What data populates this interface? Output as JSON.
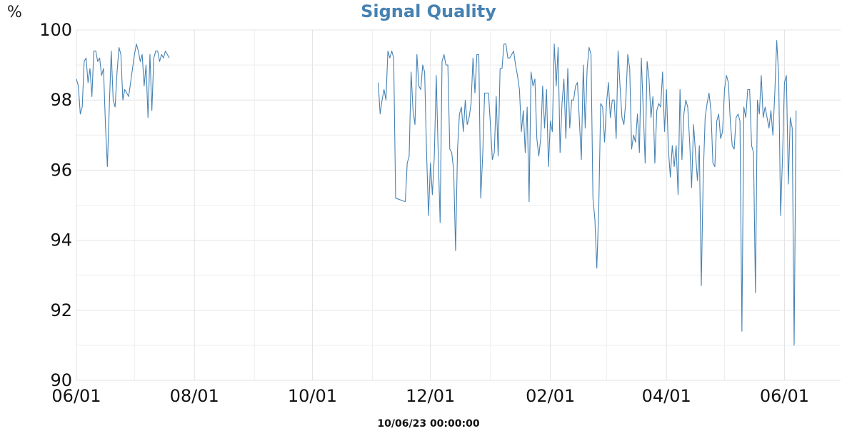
{
  "chart_data": {
    "type": "line",
    "title": "Signal Quality",
    "ylabel": "%",
    "xlabel": "10/06/23 00:00:00",
    "ylim": [
      90,
      100
    ],
    "xlim": [
      "2023-06-01",
      "2024-06-30"
    ],
    "y_ticks": [
      90,
      92,
      94,
      96,
      98,
      100
    ],
    "x_ticks": [
      {
        "date": "2023-06-01",
        "label": "06/01"
      },
      {
        "date": "2023-08-01",
        "label": "08/01"
      },
      {
        "date": "2023-10-01",
        "label": "10/01"
      },
      {
        "date": "2023-12-01",
        "label": "12/01"
      },
      {
        "date": "2024-02-01",
        "label": "02/01"
      },
      {
        "date": "2024-04-01",
        "label": "04/01"
      },
      {
        "date": "2024-06-01",
        "label": "06/01"
      }
    ],
    "grid": true,
    "line_color": "#4682b4",
    "series": [
      {
        "x": [
          "2023-06-01",
          "2023-06-02",
          "2023-06-03",
          "2023-06-04",
          "2023-06-05",
          "2023-06-06",
          "2023-06-07",
          "2023-06-08",
          "2023-06-09",
          "2023-06-10",
          "2023-06-11",
          "2023-06-12",
          "2023-06-13",
          "2023-06-14",
          "2023-06-15",
          "2023-06-16",
          "2023-06-17",
          "2023-06-18",
          "2023-06-19",
          "2023-06-20",
          "2023-06-21",
          "2023-06-22",
          "2023-06-23",
          "2023-06-24",
          "2023-06-25",
          "2023-06-26",
          "2023-06-27",
          "2023-06-28",
          "2023-06-29",
          "2023-06-30",
          "2023-07-01",
          "2023-07-02",
          "2023-07-03",
          "2023-07-04",
          "2023-07-05",
          "2023-07-06",
          "2023-07-07",
          "2023-07-08",
          "2023-07-09",
          "2023-07-10",
          "2023-07-11",
          "2023-07-12",
          "2023-07-13",
          "2023-07-14",
          "2023-07-15",
          "2023-07-16",
          "2023-07-17",
          "2023-07-18",
          "2023-07-19"
        ],
        "y": [
          98.6,
          98.4,
          97.6,
          97.8,
          99.1,
          99.2,
          98.5,
          98.9,
          98.1,
          99.4,
          99.4,
          99.1,
          99.2,
          98.7,
          98.9,
          97.3,
          96.1,
          97.8,
          99.4,
          98.0,
          97.8,
          98.8,
          99.5,
          99.3,
          98.0,
          98.3,
          98.2,
          98.1,
          98.5,
          98.9,
          99.3,
          99.6,
          99.4,
          99.1,
          99.3,
          98.4,
          99.0,
          97.5,
          99.3,
          97.7,
          99.2,
          99.4,
          99.4,
          99.1,
          99.3,
          99.2,
          99.4,
          99.3,
          99.2
        ]
      },
      {
        "x": [
          "2023-11-04",
          "2023-11-05",
          "2023-11-06",
          "2023-11-07",
          "2023-11-08",
          "2023-11-09",
          "2023-11-10",
          "2023-11-11",
          "2023-11-12",
          "2023-11-13",
          "2023-11-18",
          "2023-11-19",
          "2023-11-20",
          "2023-11-21",
          "2023-11-22",
          "2023-11-23",
          "2023-11-24",
          "2023-11-25",
          "2023-11-26",
          "2023-11-27",
          "2023-11-28",
          "2023-11-29",
          "2023-11-30",
          "2023-12-01",
          "2023-12-02",
          "2023-12-03",
          "2023-12-04",
          "2023-12-05",
          "2023-12-06",
          "2023-12-07",
          "2023-12-08",
          "2023-12-09",
          "2023-12-10",
          "2023-12-11",
          "2023-12-12",
          "2023-12-13",
          "2023-12-14",
          "2023-12-15",
          "2023-12-16",
          "2023-12-17",
          "2023-12-18",
          "2023-12-19",
          "2023-12-20",
          "2023-12-21",
          "2023-12-22",
          "2023-12-23",
          "2023-12-24",
          "2023-12-25",
          "2023-12-26",
          "2023-12-27",
          "2023-12-28",
          "2023-12-29",
          "2023-12-30",
          "2023-12-31",
          "2024-01-01",
          "2024-01-02",
          "2024-01-03",
          "2024-01-04",
          "2024-01-05",
          "2024-01-06",
          "2024-01-07",
          "2024-01-08",
          "2024-01-09",
          "2024-01-10",
          "2024-01-11",
          "2024-01-12",
          "2024-01-13",
          "2024-01-14",
          "2024-01-15",
          "2024-01-16",
          "2024-01-17",
          "2024-01-18",
          "2024-01-19",
          "2024-01-20",
          "2024-01-21",
          "2024-01-22",
          "2024-01-23",
          "2024-01-24",
          "2024-01-25",
          "2024-01-26",
          "2024-01-27",
          "2024-01-28",
          "2024-01-29",
          "2024-01-30",
          "2024-01-31",
          "2024-02-01",
          "2024-02-02",
          "2024-02-03",
          "2024-02-04",
          "2024-02-05",
          "2024-02-06",
          "2024-02-07",
          "2024-02-08",
          "2024-02-09",
          "2024-02-10",
          "2024-02-11",
          "2024-02-12",
          "2024-02-13",
          "2024-02-14",
          "2024-02-15",
          "2024-02-16",
          "2024-02-17",
          "2024-02-18",
          "2024-02-19",
          "2024-02-20",
          "2024-02-21",
          "2024-02-22",
          "2024-02-23",
          "2024-02-24",
          "2024-02-25",
          "2024-02-26",
          "2024-02-27",
          "2024-02-28",
          "2024-02-29",
          "2024-03-01",
          "2024-03-02",
          "2024-03-03",
          "2024-03-04",
          "2024-03-05",
          "2024-03-06",
          "2024-03-07",
          "2024-03-08",
          "2024-03-09",
          "2024-03-10",
          "2024-03-11",
          "2024-03-12",
          "2024-03-13",
          "2024-03-14",
          "2024-03-15",
          "2024-03-16",
          "2024-03-17",
          "2024-03-18",
          "2024-03-19",
          "2024-03-20",
          "2024-03-21",
          "2024-03-22",
          "2024-03-23",
          "2024-03-24",
          "2024-03-25",
          "2024-03-26",
          "2024-03-27",
          "2024-03-28",
          "2024-03-29",
          "2024-03-30",
          "2024-03-31",
          "2024-04-01",
          "2024-04-02",
          "2024-04-03",
          "2024-04-04",
          "2024-04-05",
          "2024-04-06",
          "2024-04-07",
          "2024-04-08",
          "2024-04-09",
          "2024-04-10",
          "2024-04-11",
          "2024-04-12",
          "2024-04-13",
          "2024-04-14",
          "2024-04-15",
          "2024-04-16",
          "2024-04-17",
          "2024-04-18",
          "2024-04-19",
          "2024-04-20",
          "2024-04-21",
          "2024-04-22",
          "2024-04-23",
          "2024-04-24",
          "2024-04-25",
          "2024-04-26",
          "2024-04-27",
          "2024-04-28",
          "2024-04-29",
          "2024-04-30",
          "2024-05-01",
          "2024-05-02",
          "2024-05-03",
          "2024-05-04",
          "2024-05-05",
          "2024-05-06",
          "2024-05-07",
          "2024-05-08",
          "2024-05-09",
          "2024-05-10",
          "2024-05-11",
          "2024-05-12",
          "2024-05-13",
          "2024-05-14",
          "2024-05-15",
          "2024-05-16",
          "2024-05-17",
          "2024-05-18",
          "2024-05-19",
          "2024-05-20",
          "2024-05-21",
          "2024-05-22",
          "2024-05-23",
          "2024-05-24",
          "2024-05-25",
          "2024-05-26",
          "2024-05-27",
          "2024-05-28",
          "2024-05-29",
          "2024-05-30",
          "2024-05-31",
          "2024-06-01",
          "2024-06-02",
          "2024-06-03",
          "2024-06-04",
          "2024-06-05",
          "2024-06-06",
          "2024-06-07"
        ],
        "y": [
          98.5,
          97.6,
          98.0,
          98.3,
          98.0,
          99.4,
          99.2,
          99.4,
          99.2,
          95.2,
          95.1,
          96.2,
          96.4,
          98.8,
          97.7,
          97.3,
          99.3,
          98.4,
          98.3,
          99.0,
          98.8,
          96.5,
          94.7,
          96.2,
          95.3,
          96.4,
          98.7,
          96.5,
          94.5,
          99.1,
          99.3,
          99.0,
          99.0,
          96.6,
          96.5,
          96.0,
          93.7,
          96.6,
          97.6,
          97.8,
          97.1,
          98.0,
          97.3,
          97.5,
          97.9,
          99.2,
          98.2,
          99.3,
          99.3,
          95.2,
          96.4,
          98.2,
          98.2,
          98.2,
          97.3,
          96.3,
          96.5,
          98.1,
          96.4,
          98.9,
          98.9,
          99.6,
          99.6,
          99.2,
          99.2,
          99.3,
          99.4,
          99.0,
          98.7,
          98.3,
          97.1,
          97.7,
          96.5,
          97.8,
          95.1,
          98.8,
          98.4,
          98.6,
          96.9,
          96.4,
          96.9,
          98.4,
          97.2,
          98.3,
          96.1,
          97.4,
          97.1,
          99.6,
          98.4,
          99.5,
          96.5,
          97.9,
          98.6,
          96.9,
          98.9,
          97.2,
          98.0,
          98.0,
          98.4,
          98.5,
          97.4,
          96.3,
          99.0,
          97.2,
          98.9,
          99.5,
          99.3,
          95.2,
          94.6,
          93.2,
          94.9,
          97.9,
          97.8,
          96.8,
          97.9,
          98.5,
          97.5,
          98.0,
          98.0,
          96.9,
          99.4,
          98.4,
          97.5,
          97.3,
          98.0,
          99.3,
          98.9,
          96.6,
          97.0,
          96.8,
          97.6,
          96.5,
          99.2,
          97.7,
          96.2,
          99.1,
          98.6,
          97.5,
          98.1,
          96.2,
          97.7,
          97.9,
          97.8,
          98.8,
          97.1,
          98.3,
          96.6,
          95.8,
          96.7,
          96.1,
          96.7,
          95.3,
          98.3,
          96.3,
          97.6,
          98.0,
          97.8,
          96.8,
          95.5,
          97.3,
          96.5,
          95.7,
          96.7,
          92.7,
          95.8,
          97.5,
          97.9,
          98.2,
          97.7,
          96.2,
          96.1,
          97.4,
          97.6,
          96.9,
          97.1,
          98.3,
          98.7,
          98.5,
          97.4,
          96.7,
          96.6,
          97.5,
          97.6,
          97.4,
          91.4,
          97.8,
          97.5,
          98.3,
          98.3,
          96.7,
          96.5,
          92.5,
          98.0,
          97.6,
          98.7,
          97.5,
          97.8,
          97.5,
          97.2,
          97.7,
          97.0,
          98.2,
          99.7,
          98.7,
          94.7,
          96.4,
          98.5,
          98.7,
          95.6,
          97.5,
          97.2,
          91.0,
          97.7
        ]
      }
    ]
  }
}
